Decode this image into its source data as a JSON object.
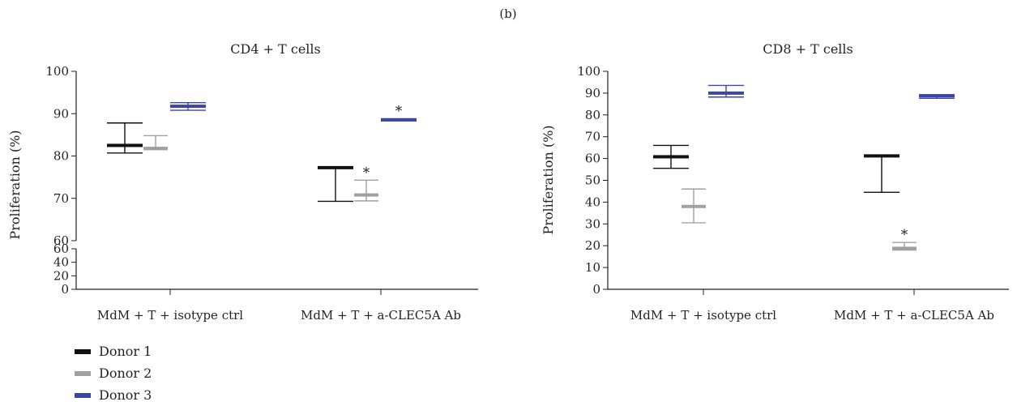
{
  "figure_label": "(b)",
  "legend": [
    {
      "label": "Donor 1",
      "color": "#111111"
    },
    {
      "label": "Donor 2",
      "color": "#a0a0a0"
    },
    {
      "label": "Donor 3",
      "color": "#3c46a6"
    }
  ],
  "chart_data": [
    {
      "type": "box",
      "title": "CD4 + T cells",
      "ylabel": "Proliferation (%)",
      "xlabel": "",
      "categories": [
        "MdM + T + isotype ctrl",
        "MdM + T + a-CLEC5A Ab"
      ],
      "y_axis_break": true,
      "ylim_lower": [
        0,
        60
      ],
      "ylim_upper": [
        60,
        100
      ],
      "yticks_lower": [
        "0",
        "20",
        "40",
        "60"
      ],
      "yticks_upper": [
        "60",
        "70",
        "80",
        "90",
        "100"
      ],
      "series": [
        {
          "name": "Donor 1",
          "color": "#111111",
          "values": [
            {
              "median": 82.5,
              "low": 80.7,
              "high": 87.8,
              "box_low": 82.2,
              "box_high": 82.8
            },
            {
              "median": 77.3,
              "low": 69.3,
              "high": 77.3,
              "box_low": 77.0,
              "box_high": 77.5
            }
          ]
        },
        {
          "name": "Donor 2",
          "color": "#a0a0a0",
          "values": [
            {
              "median": 81.8,
              "low": 81.5,
              "high": 84.8,
              "box_low": 81.5,
              "box_high": 82.1
            },
            {
              "median": 70.8,
              "low": 69.4,
              "high": 74.3,
              "box_low": 70.5,
              "box_high": 71.1
            }
          ]
        },
        {
          "name": "Donor 3",
          "color": "#3c46a6",
          "values": [
            {
              "median": 91.8,
              "low": 90.8,
              "high": 92.6,
              "box_low": 91.4,
              "box_high": 92.1
            },
            {
              "median": 88.5,
              "low": 88.3,
              "high": 88.8,
              "box_low": 88.3,
              "box_high": 88.8
            }
          ]
        }
      ],
      "annotations": [
        {
          "text": "*",
          "series": "Donor 2",
          "category": "MdM + T + a-CLEC5A Ab"
        },
        {
          "text": "*",
          "series": "Donor 3",
          "category": "MdM + T + a-CLEC5A Ab"
        }
      ]
    },
    {
      "type": "box",
      "title": "CD8 + T cells",
      "ylabel": "Proliferation (%)",
      "xlabel": "",
      "categories": [
        "MdM + T + isotype ctrl",
        "MdM + T + a-CLEC5A Ab"
      ],
      "y_axis_break": false,
      "ylim": [
        0,
        100
      ],
      "yticks": [
        "0",
        "10",
        "20",
        "30",
        "40",
        "50",
        "60",
        "70",
        "80",
        "90",
        "100"
      ],
      "series": [
        {
          "name": "Donor 1",
          "color": "#111111",
          "values": [
            {
              "median": 60.8,
              "low": 55.5,
              "high": 66.0,
              "box_low": 60.3,
              "box_high": 61.3
            },
            {
              "median": 61.2,
              "low": 44.5,
              "high": 61.2,
              "box_low": 60.8,
              "box_high": 61.6
            }
          ]
        },
        {
          "name": "Donor 2",
          "color": "#a0a0a0",
          "values": [
            {
              "median": 38.0,
              "low": 30.5,
              "high": 46.0,
              "box_low": 37.5,
              "box_high": 38.5
            },
            {
              "median": 18.8,
              "low": 18.0,
              "high": 21.5,
              "box_low": 18.3,
              "box_high": 19.3
            }
          ]
        },
        {
          "name": "Donor 3",
          "color": "#3c46a6",
          "values": [
            {
              "median": 90.0,
              "low": 88.2,
              "high": 93.5,
              "box_low": 89.3,
              "box_high": 90.7
            },
            {
              "median": 88.8,
              "low": 87.6,
              "high": 89.3,
              "box_low": 88.2,
              "box_high": 89.3
            }
          ]
        }
      ],
      "annotations": [
        {
          "text": "*",
          "series": "Donor 2",
          "category": "MdM + T + a-CLEC5A Ab"
        }
      ]
    }
  ]
}
